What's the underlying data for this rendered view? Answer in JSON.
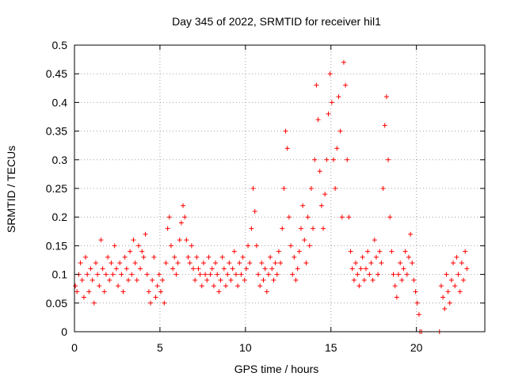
{
  "chart_data": {
    "type": "scatter",
    "title": "Day 345 of 2022, SRMTID for receiver hil1",
    "xlabel": "GPS time / hours",
    "ylabel": "SRMTID / TECUs",
    "xlim": [
      0,
      24
    ],
    "ylim": [
      0,
      0.5
    ],
    "xticks": [
      0,
      5,
      10,
      15,
      20
    ],
    "yticks": [
      0,
      0.05,
      0.1,
      0.15,
      0.2,
      0.25,
      0.3,
      0.35,
      0.4,
      0.45,
      0.5
    ],
    "grid": true,
    "legend": "none",
    "marker": "plus",
    "color": "#ff0000",
    "series": [
      {
        "points": [
          [
            0.05,
            0.08
          ],
          [
            0.15,
            0.07
          ],
          [
            0.25,
            0.1
          ],
          [
            0.35,
            0.12
          ],
          [
            0.45,
            0.09
          ],
          [
            0.55,
            0.06
          ],
          [
            0.65,
            0.13
          ],
          [
            0.75,
            0.1
          ],
          [
            0.85,
            0.07
          ],
          [
            0.95,
            0.11
          ],
          [
            1.05,
            0.09
          ],
          [
            1.15,
            0.05
          ],
          [
            1.25,
            0.12
          ],
          [
            1.35,
            0.1
          ],
          [
            1.45,
            0.08
          ],
          [
            1.55,
            0.16
          ],
          [
            1.65,
            0.11
          ],
          [
            1.75,
            0.07
          ],
          [
            1.85,
            0.1
          ],
          [
            1.95,
            0.13
          ],
          [
            2.05,
            0.09
          ],
          [
            2.15,
            0.12
          ],
          [
            2.25,
            0.1
          ],
          [
            2.35,
            0.15
          ],
          [
            2.45,
            0.11
          ],
          [
            2.55,
            0.08
          ],
          [
            2.65,
            0.12
          ],
          [
            2.75,
            0.1
          ],
          [
            2.85,
            0.07
          ],
          [
            2.95,
            0.13
          ],
          [
            3.05,
            0.11
          ],
          [
            3.15,
            0.09
          ],
          [
            3.25,
            0.14
          ],
          [
            3.35,
            0.1
          ],
          [
            3.45,
            0.16
          ],
          [
            3.55,
            0.12
          ],
          [
            3.65,
            0.09
          ],
          [
            3.75,
            0.15
          ],
          [
            3.85,
            0.11
          ],
          [
            3.95,
            0.14
          ],
          [
            4.05,
            0.13
          ],
          [
            4.15,
            0.17
          ],
          [
            4.25,
            0.1
          ],
          [
            4.35,
            0.07
          ],
          [
            4.45,
            0.05
          ],
          [
            4.55,
            0.09
          ],
          [
            4.65,
            0.13
          ],
          [
            4.75,
            0.06
          ],
          [
            4.85,
            0.08
          ],
          [
            4.95,
            0.1
          ],
          [
            5.05,
            0.07
          ],
          [
            5.15,
            0.09
          ],
          [
            5.25,
            0.05
          ],
          [
            5.35,
            0.12
          ],
          [
            5.45,
            0.18
          ],
          [
            5.55,
            0.2
          ],
          [
            5.65,
            0.15
          ],
          [
            5.75,
            0.11
          ],
          [
            5.85,
            0.13
          ],
          [
            5.95,
            0.1
          ],
          [
            6.05,
            0.12
          ],
          [
            6.15,
            0.16
          ],
          [
            6.25,
            0.19
          ],
          [
            6.35,
            0.22
          ],
          [
            6.45,
            0.2
          ],
          [
            6.55,
            0.16
          ],
          [
            6.65,
            0.13
          ],
          [
            6.75,
            0.12
          ],
          [
            6.85,
            0.15
          ],
          [
            6.95,
            0.11
          ],
          [
            7.05,
            0.09
          ],
          [
            7.15,
            0.13
          ],
          [
            7.25,
            0.11
          ],
          [
            7.35,
            0.1
          ],
          [
            7.45,
            0.08
          ],
          [
            7.55,
            0.12
          ],
          [
            7.65,
            0.1
          ],
          [
            7.75,
            0.09
          ],
          [
            7.85,
            0.13
          ],
          [
            7.95,
            0.1
          ],
          [
            8.05,
            0.11
          ],
          [
            8.15,
            0.08
          ],
          [
            8.25,
            0.12
          ],
          [
            8.35,
            0.1
          ],
          [
            8.45,
            0.07
          ],
          [
            8.55,
            0.09
          ],
          [
            8.65,
            0.13
          ],
          [
            8.75,
            0.11
          ],
          [
            8.85,
            0.08
          ],
          [
            8.95,
            0.1
          ],
          [
            9.05,
            0.12
          ],
          [
            9.15,
            0.09
          ],
          [
            9.25,
            0.11
          ],
          [
            9.35,
            0.14
          ],
          [
            9.45,
            0.1
          ],
          [
            9.55,
            0.08
          ],
          [
            9.65,
            0.12
          ],
          [
            9.75,
            0.1
          ],
          [
            9.85,
            0.13
          ],
          [
            9.95,
            0.09
          ],
          [
            10.05,
            0.11
          ],
          [
            10.15,
            0.15
          ],
          [
            10.25,
            0.12
          ],
          [
            10.35,
            0.18
          ],
          [
            10.45,
            0.25
          ],
          [
            10.55,
            0.21
          ],
          [
            10.65,
            0.15
          ],
          [
            10.75,
            0.1
          ],
          [
            10.85,
            0.08
          ],
          [
            10.95,
            0.12
          ],
          [
            11.05,
            0.09
          ],
          [
            11.15,
            0.11
          ],
          [
            11.25,
            0.07
          ],
          [
            11.35,
            0.1
          ],
          [
            11.45,
            0.13
          ],
          [
            11.55,
            0.11
          ],
          [
            11.65,
            0.09
          ],
          [
            11.75,
            0.12
          ],
          [
            11.85,
            0.1
          ],
          [
            11.95,
            0.14
          ],
          [
            12.05,
            0.12
          ],
          [
            12.15,
            0.18
          ],
          [
            12.25,
            0.25
          ],
          [
            12.35,
            0.35
          ],
          [
            12.45,
            0.32
          ],
          [
            12.55,
            0.2
          ],
          [
            12.65,
            0.15
          ],
          [
            12.75,
            0.1
          ],
          [
            12.85,
            0.13
          ],
          [
            12.95,
            0.09
          ],
          [
            13.05,
            0.11
          ],
          [
            13.15,
            0.14
          ],
          [
            13.25,
            0.18
          ],
          [
            13.35,
            0.22
          ],
          [
            13.45,
            0.16
          ],
          [
            13.55,
            0.12
          ],
          [
            13.65,
            0.2
          ],
          [
            13.75,
            0.15
          ],
          [
            13.85,
            0.25
          ],
          [
            13.95,
            0.18
          ],
          [
            14.05,
            0.3
          ],
          [
            14.15,
            0.43
          ],
          [
            14.25,
            0.37
          ],
          [
            14.35,
            0.28
          ],
          [
            14.45,
            0.22
          ],
          [
            14.55,
            0.18
          ],
          [
            14.65,
            0.24
          ],
          [
            14.75,
            0.3
          ],
          [
            14.85,
            0.38
          ],
          [
            14.95,
            0.45
          ],
          [
            15.05,
            0.4
          ],
          [
            15.15,
            0.3
          ],
          [
            15.25,
            0.25
          ],
          [
            15.35,
            0.32
          ],
          [
            15.45,
            0.41
          ],
          [
            15.55,
            0.35
          ],
          [
            15.65,
            0.2
          ],
          [
            15.75,
            0.47
          ],
          [
            15.85,
            0.43
          ],
          [
            15.95,
            0.3
          ],
          [
            16.05,
            0.2
          ],
          [
            16.15,
            0.14
          ],
          [
            16.25,
            0.11
          ],
          [
            16.35,
            0.09
          ],
          [
            16.45,
            0.12
          ],
          [
            16.55,
            0.1
          ],
          [
            16.65,
            0.08
          ],
          [
            16.75,
            0.11
          ],
          [
            16.85,
            0.13
          ],
          [
            16.95,
            0.09
          ],
          [
            17.05,
            0.11
          ],
          [
            17.15,
            0.14
          ],
          [
            17.25,
            0.1
          ],
          [
            17.35,
            0.12
          ],
          [
            17.45,
            0.09
          ],
          [
            17.55,
            0.16
          ],
          [
            17.65,
            0.13
          ],
          [
            17.75,
            0.1
          ],
          [
            17.85,
            0.14
          ],
          [
            17.95,
            0.12
          ],
          [
            18.05,
            0.25
          ],
          [
            18.15,
            0.36
          ],
          [
            18.25,
            0.41
          ],
          [
            18.35,
            0.3
          ],
          [
            18.45,
            0.2
          ],
          [
            18.55,
            0.14
          ],
          [
            18.65,
            0.1
          ],
          [
            18.75,
            0.08
          ],
          [
            18.85,
            0.06
          ],
          [
            18.95,
            0.1
          ],
          [
            19.05,
            0.12
          ],
          [
            19.15,
            0.09
          ],
          [
            19.25,
            0.11
          ],
          [
            19.35,
            0.14
          ],
          [
            19.45,
            0.1
          ],
          [
            19.55,
            0.13
          ],
          [
            19.65,
            0.17
          ],
          [
            19.75,
            0.12
          ],
          [
            19.85,
            0.09
          ],
          [
            19.95,
            0.07
          ],
          [
            20.05,
            0.05
          ],
          [
            20.15,
            0.03
          ],
          [
            20.2,
            0.0
          ],
          [
            20.3,
            0.0
          ],
          [
            21.35,
            0.0
          ],
          [
            21.45,
            0.08
          ],
          [
            21.55,
            0.06
          ],
          [
            21.65,
            0.04
          ],
          [
            21.75,
            0.1
          ],
          [
            21.85,
            0.07
          ],
          [
            21.95,
            0.05
          ],
          [
            22.05,
            0.09
          ],
          [
            22.15,
            0.12
          ],
          [
            22.25,
            0.08
          ],
          [
            22.35,
            0.13
          ],
          [
            22.45,
            0.1
          ],
          [
            22.55,
            0.07
          ],
          [
            22.65,
            0.12
          ],
          [
            22.75,
            0.09
          ],
          [
            22.85,
            0.14
          ],
          [
            22.95,
            0.11
          ]
        ]
      }
    ]
  }
}
